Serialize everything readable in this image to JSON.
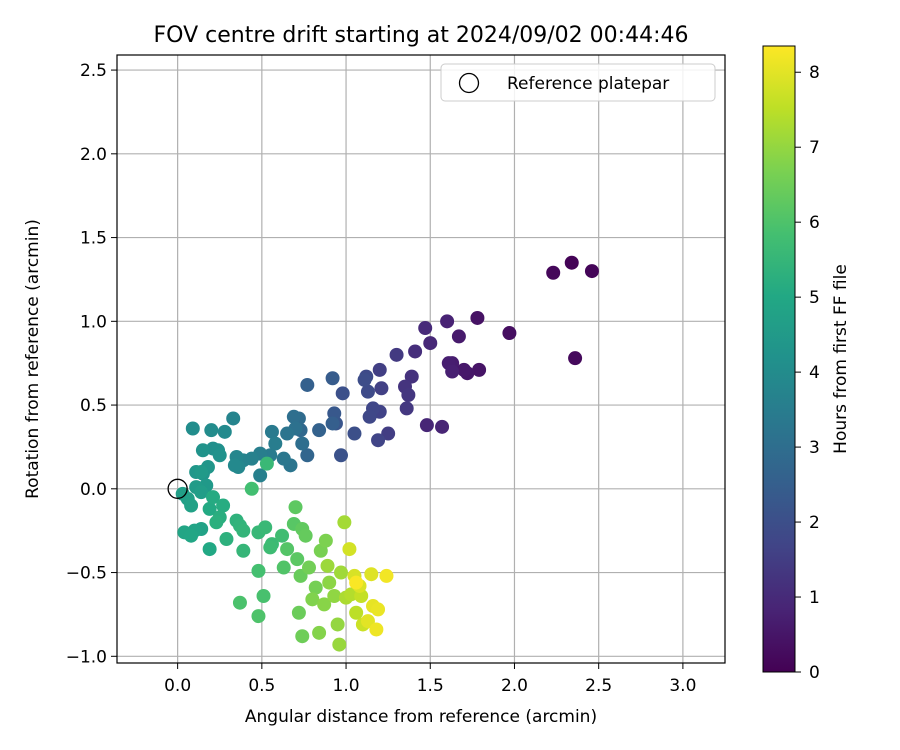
{
  "chart_data": {
    "type": "scatter",
    "title": "FOV centre drift starting at 2024/09/02 00:44:46",
    "xlabel": "Angular distance from reference (arcmin)",
    "ylabel": "Rotation from reference (arcmin)",
    "xlim": [
      -0.36,
      3.25
    ],
    "ylim": [
      -1.04,
      2.59
    ],
    "xticks": [
      0.0,
      0.5,
      1.0,
      1.5,
      2.0,
      2.5,
      3.0
    ],
    "xtick_labels": [
      "0.0",
      "0.5",
      "1.0",
      "1.5",
      "2.0",
      "2.5",
      "3.0"
    ],
    "yticks": [
      -1.0,
      -0.5,
      0.0,
      0.5,
      1.0,
      1.5,
      2.0,
      2.5
    ],
    "ytick_labels": [
      "−1.0",
      "−0.5",
      "0.0",
      "0.5",
      "1.0",
      "1.5",
      "2.0",
      "2.5"
    ],
    "grid": true,
    "legend": {
      "position": "top-right",
      "entries": [
        "Reference platepar"
      ]
    },
    "reference_point": {
      "x": 0.0,
      "y": 0.0
    },
    "colorbar": {
      "label": "Hours from first FF file",
      "colormap": "viridis",
      "range": [
        0,
        8.35
      ],
      "ticks": [
        0,
        1,
        2,
        3,
        4,
        5,
        6,
        7,
        8
      ],
      "tick_labels": [
        "0",
        "1",
        "2",
        "3",
        "4",
        "5",
        "6",
        "7",
        "8"
      ]
    },
    "points": [
      [
        2.34,
        1.35,
        0.05
      ],
      [
        2.46,
        1.3,
        0.1
      ],
      [
        2.23,
        1.29,
        0.15
      ],
      [
        2.36,
        0.78,
        0.2
      ],
      [
        1.97,
        0.93,
        0.3
      ],
      [
        1.78,
        1.02,
        0.4
      ],
      [
        1.79,
        0.71,
        0.45
      ],
      [
        1.72,
        0.69,
        0.5
      ],
      [
        1.7,
        0.71,
        0.55
      ],
      [
        1.67,
        0.91,
        0.6
      ],
      [
        1.63,
        0.75,
        0.65
      ],
      [
        1.61,
        0.75,
        0.7
      ],
      [
        1.63,
        0.7,
        0.75
      ],
      [
        1.6,
        1.0,
        0.8
      ],
      [
        1.57,
        0.37,
        0.85
      ],
      [
        1.48,
        0.38,
        0.9
      ],
      [
        1.5,
        0.87,
        0.95
      ],
      [
        1.47,
        0.96,
        1.0
      ],
      [
        1.41,
        0.82,
        1.1
      ],
      [
        1.39,
        0.67,
        1.2
      ],
      [
        1.35,
        0.61,
        1.25
      ],
      [
        1.37,
        0.56,
        1.3
      ],
      [
        1.36,
        0.48,
        1.35
      ],
      [
        1.3,
        0.8,
        1.4
      ],
      [
        1.25,
        0.33,
        1.5
      ],
      [
        1.2,
        0.71,
        1.55
      ],
      [
        1.21,
        0.6,
        1.6
      ],
      [
        1.2,
        0.46,
        1.65
      ],
      [
        1.19,
        0.29,
        1.7
      ],
      [
        1.16,
        0.48,
        1.75
      ],
      [
        1.14,
        0.43,
        1.8
      ],
      [
        1.12,
        0.67,
        1.85
      ],
      [
        1.13,
        0.58,
        1.9
      ],
      [
        1.11,
        0.65,
        1.95
      ],
      [
        1.05,
        0.33,
        2.0
      ],
      [
        0.98,
        0.57,
        2.05
      ],
      [
        0.97,
        0.2,
        2.1
      ],
      [
        0.94,
        0.39,
        2.2
      ],
      [
        0.93,
        0.45,
        2.3
      ],
      [
        0.92,
        0.66,
        2.4
      ],
      [
        0.92,
        0.39,
        2.5
      ],
      [
        0.77,
        0.62,
        2.55
      ],
      [
        0.84,
        0.35,
        2.6
      ],
      [
        0.77,
        0.2,
        2.7
      ],
      [
        0.73,
        0.35,
        2.8
      ],
      [
        0.72,
        0.42,
        2.9
      ],
      [
        0.74,
        0.27,
        3.0
      ],
      [
        0.69,
        0.43,
        3.05
      ],
      [
        0.7,
        0.36,
        3.1
      ],
      [
        0.65,
        0.33,
        3.2
      ],
      [
        0.67,
        0.14,
        3.25
      ],
      [
        0.63,
        0.18,
        3.3
      ],
      [
        0.56,
        0.34,
        3.4
      ],
      [
        0.55,
        0.2,
        3.45
      ],
      [
        0.58,
        0.27,
        3.5
      ],
      [
        0.49,
        0.21,
        3.55
      ],
      [
        0.49,
        0.08,
        3.6
      ],
      [
        0.44,
        0.18,
        3.65
      ],
      [
        0.39,
        0.17,
        3.7
      ],
      [
        0.33,
        0.42,
        3.75
      ],
      [
        0.35,
        0.19,
        3.8
      ],
      [
        0.36,
        0.13,
        3.85
      ],
      [
        0.34,
        0.14,
        3.9
      ],
      [
        0.28,
        0.34,
        3.95
      ],
      [
        0.2,
        0.35,
        4.0
      ],
      [
        0.09,
        0.36,
        4.05
      ],
      [
        0.21,
        0.24,
        4.1
      ],
      [
        0.24,
        0.23,
        4.15
      ],
      [
        0.25,
        0.2,
        4.2
      ],
      [
        0.15,
        0.23,
        4.25
      ],
      [
        0.15,
        0.09,
        4.3
      ],
      [
        0.18,
        0.13,
        4.35
      ],
      [
        0.11,
        0.1,
        4.4
      ],
      [
        0.17,
        0.02,
        4.45
      ],
      [
        0.14,
        0.1,
        4.5
      ],
      [
        0.11,
        0.01,
        4.55
      ],
      [
        0.14,
        -0.02,
        4.6
      ],
      [
        0.03,
        -0.03,
        4.65
      ],
      [
        0.06,
        -0.06,
        4.7
      ],
      [
        0.08,
        -0.1,
        4.75
      ],
      [
        0.14,
        -0.24,
        4.8
      ],
      [
        0.1,
        -0.25,
        4.85
      ],
      [
        0.04,
        -0.26,
        4.9
      ],
      [
        0.08,
        -0.28,
        4.95
      ],
      [
        0.19,
        -0.36,
        5.0
      ],
      [
        0.19,
        -0.12,
        5.05
      ],
      [
        0.21,
        -0.05,
        5.1
      ],
      [
        0.27,
        -0.1,
        5.15
      ],
      [
        0.25,
        -0.17,
        5.2
      ],
      [
        0.23,
        -0.2,
        5.25
      ],
      [
        0.29,
        -0.3,
        5.3
      ],
      [
        0.35,
        -0.19,
        5.35
      ],
      [
        0.37,
        -0.22,
        5.4
      ],
      [
        0.39,
        -0.25,
        5.45
      ],
      [
        0.39,
        -0.37,
        5.5
      ],
      [
        0.48,
        -0.26,
        5.55
      ],
      [
        0.52,
        -0.23,
        5.6
      ],
      [
        0.56,
        -0.33,
        5.65
      ],
      [
        0.55,
        -0.35,
        5.7
      ],
      [
        0.62,
        -0.28,
        5.75
      ],
      [
        0.53,
        0.15,
        5.6
      ],
      [
        0.44,
        0.0,
        5.8
      ],
      [
        0.48,
        -0.49,
        5.85
      ],
      [
        0.51,
        -0.64,
        5.9
      ],
      [
        0.37,
        -0.68,
        5.95
      ],
      [
        0.48,
        -0.76,
        6.0
      ],
      [
        0.63,
        -0.47,
        6.05
      ],
      [
        0.65,
        -0.36,
        6.1
      ],
      [
        0.69,
        -0.21,
        6.15
      ],
      [
        0.71,
        -0.42,
        6.2
      ],
      [
        0.7,
        -0.11,
        6.25
      ],
      [
        0.74,
        -0.24,
        6.3
      ],
      [
        0.76,
        -0.28,
        6.35
      ],
      [
        0.73,
        -0.52,
        6.4
      ],
      [
        0.72,
        -0.74,
        6.45
      ],
      [
        0.74,
        -0.88,
        6.5
      ],
      [
        0.78,
        -0.47,
        6.55
      ],
      [
        0.82,
        -0.59,
        6.6
      ],
      [
        0.85,
        -0.37,
        6.65
      ],
      [
        0.88,
        -0.31,
        6.7
      ],
      [
        0.8,
        -0.66,
        6.75
      ],
      [
        0.84,
        -0.86,
        6.8
      ],
      [
        0.87,
        -0.69,
        6.85
      ],
      [
        0.9,
        -0.56,
        6.9
      ],
      [
        0.93,
        -0.64,
        6.95
      ],
      [
        0.95,
        -0.81,
        7.0
      ],
      [
        0.96,
        -0.93,
        7.05
      ],
      [
        0.89,
        -0.46,
        7.1
      ],
      [
        0.97,
        -0.5,
        7.15
      ],
      [
        0.99,
        -0.2,
        7.2
      ],
      [
        1.0,
        -0.65,
        7.3
      ],
      [
        1.03,
        -0.63,
        7.4
      ],
      [
        1.06,
        -0.74,
        7.5
      ],
      [
        1.09,
        -0.64,
        7.6
      ],
      [
        1.1,
        -0.81,
        7.7
      ],
      [
        1.02,
        -0.36,
        7.8
      ],
      [
        1.05,
        -0.52,
        7.85
      ],
      [
        1.08,
        -0.58,
        7.9
      ],
      [
        1.15,
        -0.51,
        7.95
      ],
      [
        1.13,
        -0.79,
        8.0
      ],
      [
        1.16,
        -0.7,
        8.05
      ],
      [
        1.19,
        -0.72,
        8.1
      ],
      [
        1.18,
        -0.84,
        8.15
      ],
      [
        1.24,
        -0.52,
        8.2
      ],
      [
        1.06,
        -0.56,
        8.3
      ]
    ]
  }
}
